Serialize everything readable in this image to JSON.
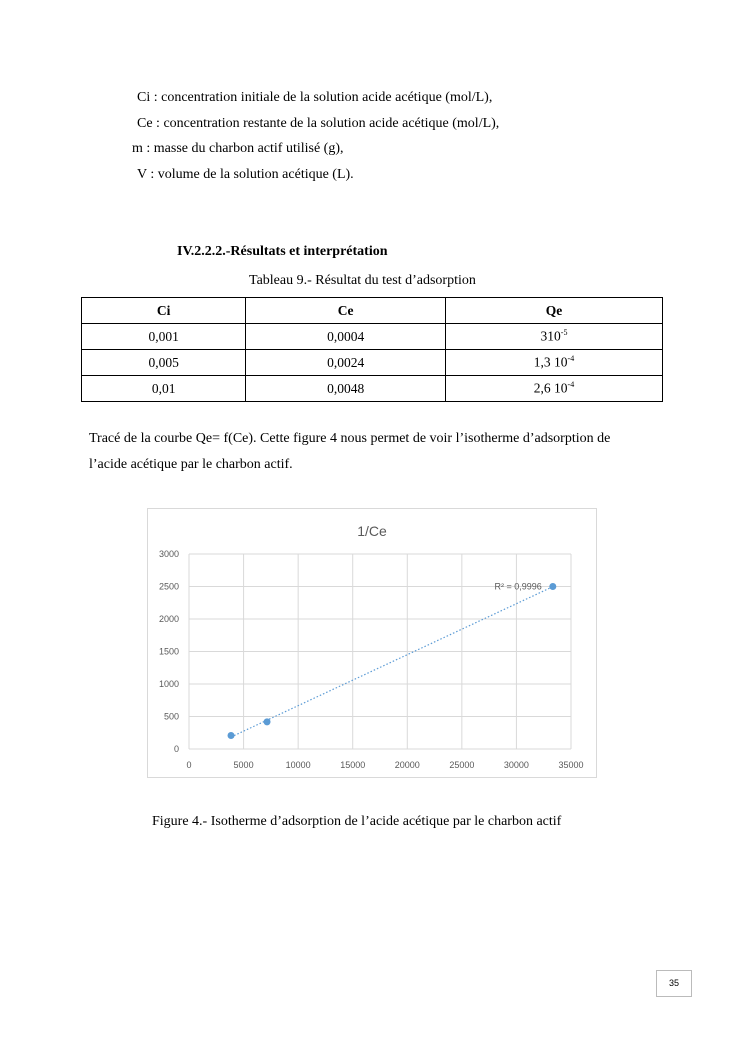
{
  "definitions": [
    "Ci : concentration initiale de la solution acide acétique (mol/L),",
    "Ce : concentration restante de la solution acide acétique (mol/L),",
    "m : masse du charbon actif utilisé (g),",
    "V : volume de la solution acétique (L)."
  ],
  "section_title": "IV.2.2.2.-Résultats et interprétation",
  "table_caption": "Tableau 9.- Résultat du test d’adsorption",
  "table": {
    "headers": [
      "Ci",
      "Ce",
      "Qe"
    ],
    "rows": [
      {
        "ci": "0,001",
        "ce": "0,0004",
        "qe_base": "310",
        "qe_exp": "-5"
      },
      {
        "ci": "0,005",
        "ce": "0,0024",
        "qe_base": "1,3 10",
        "qe_exp": "-4"
      },
      {
        "ci": "0,01",
        "ce": "0,0048",
        "qe_base": "2,6 10",
        "qe_exp": "-4"
      }
    ]
  },
  "paragraph": [
    "Tracé de la courbe Qe= f(Ce). Cette figure 4 nous permet de voir l’isotherme d’adsorption de",
    "l’acide acétique par le charbon actif."
  ],
  "chart_data": {
    "type": "scatter",
    "title": "1/Ce",
    "xlabel": "",
    "ylabel": "",
    "xlim": [
      0,
      35000
    ],
    "ylim": [
      0,
      3000
    ],
    "xticks": [
      0,
      5000,
      10000,
      15000,
      20000,
      25000,
      30000,
      35000
    ],
    "yticks": [
      0,
      500,
      1000,
      1500,
      2000,
      2500,
      3000
    ],
    "grid": true,
    "points": [
      {
        "x": 3850,
        "y": 208
      },
      {
        "x": 7150,
        "y": 417
      },
      {
        "x": 33333,
        "y": 2500
      }
    ],
    "trendline": {
      "type": "linear",
      "style": "dotted",
      "label": "R² = 0,9996"
    },
    "marker_color": "#5b9bd5",
    "grid_color": "#d9d9d9"
  },
  "figure_caption": "Figure 4.- Isotherme d’adsorption de l’acide acétique par le charbon actif",
  "page_number": "35"
}
